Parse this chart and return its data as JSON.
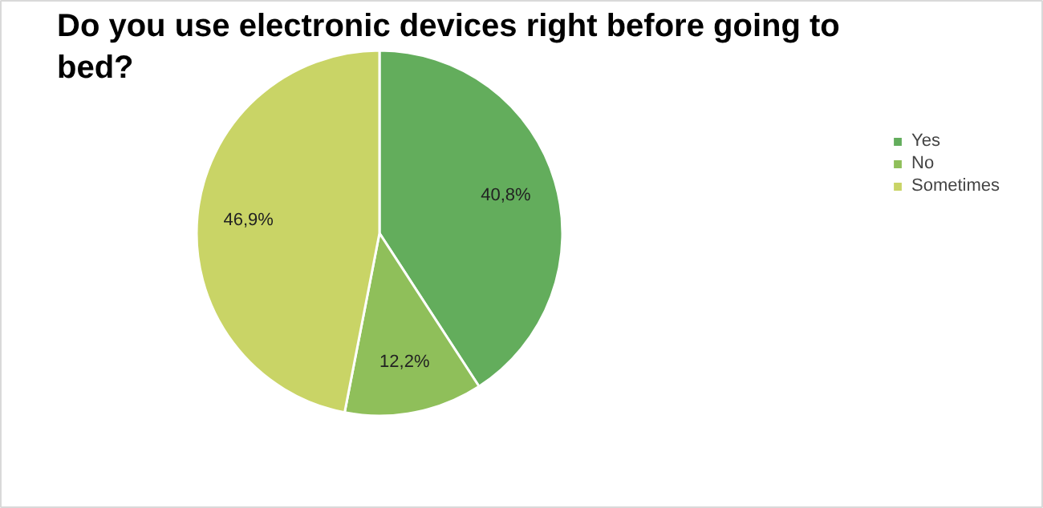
{
  "chart_data": {
    "type": "pie",
    "title": "Do you use electronic devices right before going to bed?",
    "categories": [
      "Yes",
      "No",
      "Sometimes"
    ],
    "values": [
      40.8,
      12.2,
      46.9
    ],
    "value_labels": [
      "40,8%",
      "12,2%",
      "46,9%"
    ],
    "colors": [
      "#63ad5c",
      "#8fbf5a",
      "#c9d466"
    ],
    "legend": "right"
  }
}
